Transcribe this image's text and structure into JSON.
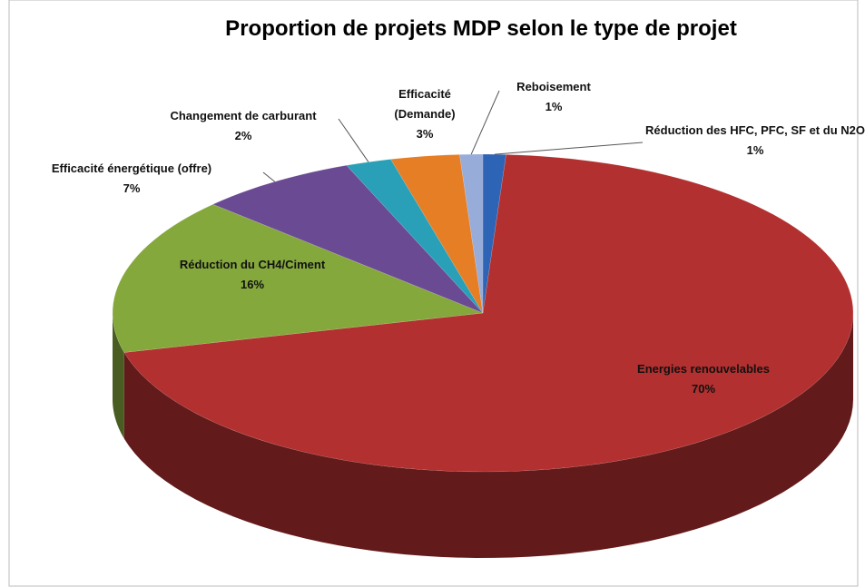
{
  "chart_data": {
    "type": "pie",
    "title": "Proportion de projets MDP selon le type de projet",
    "categories": [
      "Réduction des HFC, PFC, SF et du N2O",
      "Energies renouvelables",
      "Réduction du CH4/Ciment",
      "Efficacité énergétique (offre)",
      "Changement de carburant",
      "Efficacité (Demande)",
      "Reboisement"
    ],
    "values": [
      1,
      70,
      16,
      7,
      2,
      3,
      1
    ],
    "value_labels": [
      "1%",
      "70%",
      "16%",
      "7%",
      "2%",
      "3%",
      "1%"
    ],
    "colors": [
      "#2e64b5",
      "#b2302f",
      "#84a83c",
      "#6b4a94",
      "#2aa0b8",
      "#e57e25",
      "#97acd8"
    ]
  }
}
